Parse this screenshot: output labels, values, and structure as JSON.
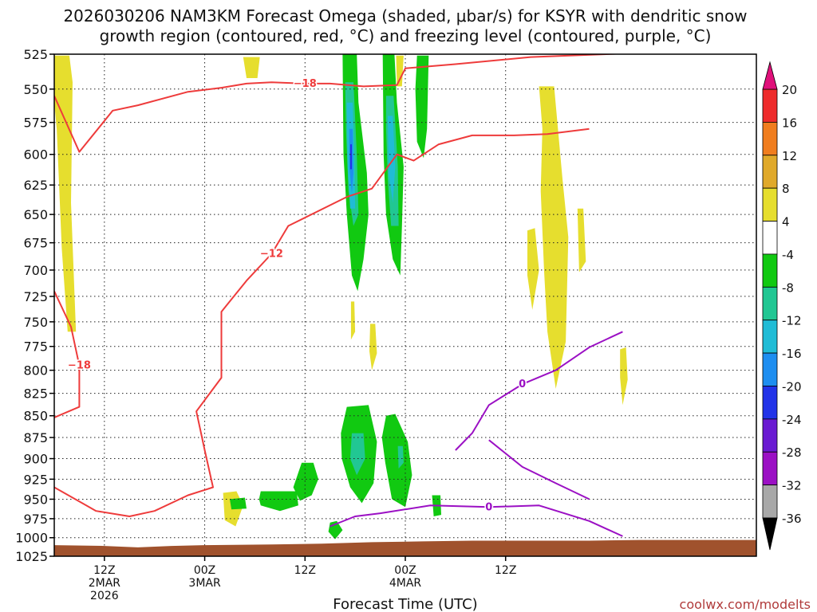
{
  "title_line1": "2026030206 NAM3KM Forecast Omega (shaded, μbar/s) for KSYR with dendritic snow",
  "title_line2": "growth region (contoured, red, °C) and freezing level (contoured, purple, °C)",
  "xlabel": "Forecast Time (UTC)",
  "watermark": "coolwx.com/modelts",
  "chart_data": {
    "type": "heatmap",
    "y_axis": {
      "label": "",
      "scale": "log-pressure",
      "inverted": true,
      "range_hpa": [
        525,
        1025
      ],
      "ticks": [
        525,
        550,
        575,
        600,
        625,
        650,
        675,
        700,
        725,
        750,
        775,
        800,
        825,
        850,
        875,
        900,
        925,
        950,
        975,
        1000,
        1025
      ]
    },
    "x_axis": {
      "range_hours": [
        0,
        84
      ],
      "ticks": [
        {
          "hour": 6,
          "lines": [
            "12Z",
            "2MAR",
            "2026"
          ]
        },
        {
          "hour": 18,
          "lines": [
            "00Z",
            "3MAR"
          ]
        },
        {
          "hour": 30,
          "lines": [
            "12Z"
          ]
        },
        {
          "hour": 42,
          "lines": [
            "00Z",
            "4MAR"
          ]
        },
        {
          "hour": 54,
          "lines": [
            "12Z"
          ]
        }
      ]
    },
    "grid": true,
    "colorbar": {
      "unit": "μbar/s",
      "labels": [
        "20",
        "16",
        "12",
        "8",
        "4",
        "-4",
        "-8",
        "-12",
        "-16",
        "-20",
        "-24",
        "-28",
        "-32",
        "-36"
      ],
      "bins": [
        {
          "from": 16,
          "to": 20,
          "color": "#ee2b2b"
        },
        {
          "from": 12,
          "to": 16,
          "color": "#f07d1e"
        },
        {
          "from": 8,
          "to": 12,
          "color": "#e0a92a"
        },
        {
          "from": 4,
          "to": 8,
          "color": "#e6de2e"
        },
        {
          "from": -4,
          "to": 4,
          "color": "#ffffff"
        },
        {
          "from": -8,
          "to": -4,
          "color": "#11c911"
        },
        {
          "from": -12,
          "to": -8,
          "color": "#21c793"
        },
        {
          "from": -16,
          "to": -12,
          "color": "#20bcd6"
        },
        {
          "from": -20,
          "to": -16,
          "color": "#1e8ef0"
        },
        {
          "from": -24,
          "to": -20,
          "color": "#2233e8"
        },
        {
          "from": -28,
          "to": -24,
          "color": "#6a1ad2"
        },
        {
          "from": -32,
          "to": -28,
          "color": "#9b10c4"
        },
        {
          "from": -36,
          "to": -32,
          "color": "#a8a8a8"
        }
      ],
      "over_color": "#e0107a",
      "under_color": "#000000"
    },
    "contours": [
      {
        "name": "dendritic -18",
        "label": "−18",
        "color": "#ee3b3b",
        "points": [
          [
            0,
            555
          ],
          [
            3,
            598
          ],
          [
            7,
            566
          ],
          [
            10,
            562
          ],
          [
            16,
            552
          ],
          [
            20,
            549
          ],
          [
            23,
            546
          ],
          [
            26,
            545
          ],
          [
            30,
            546
          ],
          [
            33,
            546
          ],
          [
            37,
            548
          ],
          [
            41,
            547
          ],
          [
            42,
            535
          ],
          [
            48,
            532
          ],
          [
            57,
            527
          ],
          [
            75,
            523
          ]
        ]
      },
      {
        "name": "dendritic -12",
        "label": "−12",
        "color": "#ee3b3b",
        "points": [
          [
            0,
            935
          ],
          [
            5,
            965
          ],
          [
            9,
            972
          ],
          [
            12,
            965
          ],
          [
            16,
            945
          ],
          [
            19,
            935
          ],
          [
            18,
            890
          ],
          [
            17,
            845
          ],
          [
            20,
            808
          ],
          [
            20,
            740
          ],
          [
            23,
            710
          ],
          [
            26,
            685
          ],
          [
            28,
            660
          ],
          [
            35,
            635
          ],
          [
            38,
            628
          ],
          [
            41,
            600
          ],
          [
            43,
            605
          ],
          [
            46,
            592
          ],
          [
            50,
            585
          ],
          [
            55,
            585
          ],
          [
            59,
            584
          ],
          [
            64,
            580
          ]
        ]
      },
      {
        "name": "dendritic -18 (lower)",
        "label": "−18",
        "color": "#ee3b3b",
        "points": [
          [
            0,
            720
          ],
          [
            2,
            755
          ],
          [
            3,
            795
          ],
          [
            3,
            840
          ],
          [
            0,
            852
          ]
        ]
      },
      {
        "name": "freezing 0",
        "label": "0",
        "color": "#9b10c4",
        "points": [
          [
            48,
            890
          ],
          [
            50,
            870
          ],
          [
            52,
            838
          ],
          [
            56,
            815
          ],
          [
            60,
            800
          ],
          [
            64,
            776
          ],
          [
            68,
            760
          ]
        ]
      },
      {
        "name": "freezing 0 (low)",
        "label": "0",
        "color": "#9b10c4",
        "points": [
          [
            33,
            985
          ],
          [
            36,
            972
          ],
          [
            39,
            968
          ],
          [
            45,
            958
          ],
          [
            52,
            960
          ],
          [
            58,
            958
          ],
          [
            64,
            978
          ],
          [
            68,
            998
          ]
        ]
      },
      {
        "name": "freezing lower",
        "label": "",
        "color": "#9b10c4",
        "points": [
          [
            52,
            878
          ],
          [
            56,
            910
          ],
          [
            60,
            930
          ],
          [
            64,
            950
          ]
        ]
      }
    ],
    "shaded_regions": [
      {
        "value": 6,
        "pts": [
          [
            0,
            526
          ],
          [
            1.8,
            526
          ],
          [
            2.2,
            545
          ],
          [
            2.0,
            640
          ],
          [
            2.6,
            760
          ],
          [
            1.6,
            760
          ],
          [
            0.9,
            680
          ],
          [
            0.3,
            580
          ],
          [
            0,
            560
          ]
        ]
      },
      {
        "value": 6,
        "pts": [
          [
            22.6,
            527
          ],
          [
            24.6,
            527
          ],
          [
            24.3,
            542
          ],
          [
            23.0,
            542
          ]
        ]
      },
      {
        "value": 6,
        "pts": [
          [
            20.2,
            942
          ],
          [
            21.8,
            940
          ],
          [
            22.6,
            958
          ],
          [
            21.7,
            985
          ],
          [
            20.4,
            977
          ]
        ]
      },
      {
        "value": 6,
        "pts": [
          [
            40.9,
            526
          ],
          [
            41.8,
            526
          ],
          [
            41.6,
            548
          ],
          [
            41.0,
            548
          ]
        ]
      },
      {
        "value": 6,
        "pts": [
          [
            58,
            548
          ],
          [
            59.8,
            548
          ],
          [
            60.8,
            620
          ],
          [
            61.5,
            670
          ],
          [
            61.2,
            770
          ],
          [
            60,
            820
          ],
          [
            59,
            760
          ],
          [
            58.6,
            700
          ],
          [
            58.2,
            630
          ],
          [
            58.4,
            580
          ]
        ]
      },
      {
        "value": 6,
        "pts": [
          [
            56.6,
            664
          ],
          [
            57.5,
            662
          ],
          [
            58,
            700
          ],
          [
            57.2,
            738
          ],
          [
            56.6,
            705
          ]
        ]
      },
      {
        "value": 6,
        "pts": [
          [
            62.6,
            645
          ],
          [
            63.3,
            645
          ],
          [
            63.6,
            692
          ],
          [
            62.8,
            702
          ]
        ]
      },
      {
        "value": 6,
        "pts": [
          [
            67.7,
            778
          ],
          [
            68.4,
            776
          ],
          [
            68.6,
            810
          ],
          [
            68.0,
            838
          ],
          [
            67.7,
            808
          ]
        ]
      },
      {
        "value": 6,
        "pts": [
          [
            35.5,
            730
          ],
          [
            35.9,
            730
          ],
          [
            36.0,
            760
          ],
          [
            35.5,
            768
          ]
        ]
      },
      {
        "value": 6,
        "pts": [
          [
            37.8,
            752
          ],
          [
            38.4,
            752
          ],
          [
            38.6,
            782
          ],
          [
            38.0,
            800
          ],
          [
            37.7,
            780
          ]
        ]
      },
      {
        "value": -6,
        "pts": [
          [
            34.5,
            525
          ],
          [
            36.2,
            525
          ],
          [
            36.4,
            560
          ],
          [
            37.4,
            615
          ],
          [
            37.6,
            650
          ],
          [
            37.0,
            690
          ],
          [
            36.3,
            720
          ],
          [
            35.6,
            705
          ],
          [
            35.0,
            650
          ],
          [
            34.6,
            600
          ]
        ]
      },
      {
        "value": -6,
        "pts": [
          [
            39.3,
            525
          ],
          [
            40.7,
            525
          ],
          [
            41.0,
            560
          ],
          [
            41.8,
            610
          ],
          [
            41.6,
            660
          ],
          [
            41.4,
            705
          ],
          [
            40.5,
            690
          ],
          [
            39.7,
            650
          ],
          [
            39.4,
            600
          ]
        ]
      },
      {
        "value": -6,
        "pts": [
          [
            43.4,
            526
          ],
          [
            44.8,
            526
          ],
          [
            44.6,
            580
          ],
          [
            44.2,
            603
          ],
          [
            43.4,
            590
          ],
          [
            43.2,
            550
          ]
        ]
      },
      {
        "value": -6,
        "pts": [
          [
            35.0,
            840
          ],
          [
            37.6,
            838
          ],
          [
            38.6,
            880
          ],
          [
            38.2,
            930
          ],
          [
            36.8,
            955
          ],
          [
            35.4,
            935
          ],
          [
            34.4,
            900
          ],
          [
            34.3,
            870
          ]
        ]
      },
      {
        "value": -6,
        "pts": [
          [
            39.7,
            850
          ],
          [
            40.8,
            848
          ],
          [
            42.3,
            880
          ],
          [
            42.8,
            920
          ],
          [
            42.0,
            960
          ],
          [
            40.4,
            950
          ],
          [
            39.6,
            905
          ],
          [
            39.2,
            875
          ]
        ]
      },
      {
        "value": -6,
        "pts": [
          [
            29.6,
            905
          ],
          [
            31.0,
            905
          ],
          [
            31.6,
            925
          ],
          [
            30.8,
            945
          ],
          [
            29.4,
            952
          ],
          [
            28.6,
            935
          ]
        ]
      },
      {
        "value": -6,
        "pts": [
          [
            24.7,
            940
          ],
          [
            29.0,
            940
          ],
          [
            29.2,
            958
          ],
          [
            27.0,
            965
          ],
          [
            24.7,
            958
          ],
          [
            24.5,
            950
          ]
        ]
      },
      {
        "value": -6,
        "pts": [
          [
            21.0,
            950
          ],
          [
            22.8,
            948
          ],
          [
            23.0,
            962
          ],
          [
            21.2,
            963
          ]
        ]
      },
      {
        "value": -6,
        "pts": [
          [
            33.0,
            980
          ],
          [
            33.8,
            978
          ],
          [
            34.5,
            990
          ],
          [
            33.6,
            1002
          ],
          [
            32.8,
            992
          ]
        ]
      },
      {
        "value": -6,
        "pts": [
          [
            45.2,
            945
          ],
          [
            46.2,
            945
          ],
          [
            46.3,
            970
          ],
          [
            45.4,
            972
          ]
        ]
      },
      {
        "value": -10,
        "pts": [
          [
            34.8,
            545
          ],
          [
            35.8,
            545
          ],
          [
            36.2,
            600
          ],
          [
            36.4,
            650
          ],
          [
            35.8,
            660
          ],
          [
            35.2,
            630
          ],
          [
            34.9,
            580
          ]
        ]
      },
      {
        "value": -10,
        "pts": [
          [
            39.7,
            555
          ],
          [
            40.6,
            555
          ],
          [
            41.1,
            610
          ],
          [
            41.2,
            660
          ],
          [
            40.3,
            660
          ],
          [
            39.9,
            620
          ],
          [
            39.7,
            580
          ]
        ]
      },
      {
        "value": -10,
        "pts": [
          [
            35.6,
            870
          ],
          [
            37.0,
            870
          ],
          [
            37.2,
            900
          ],
          [
            36.2,
            920
          ],
          [
            35.4,
            900
          ]
        ]
      },
      {
        "value": -10,
        "pts": [
          [
            41.1,
            885
          ],
          [
            41.7,
            885
          ],
          [
            41.8,
            905
          ],
          [
            41.2,
            912
          ]
        ]
      },
      {
        "value": -14,
        "pts": [
          [
            35.0,
            560
          ],
          [
            35.7,
            560
          ],
          [
            35.9,
            600
          ],
          [
            36.0,
            645
          ],
          [
            35.4,
            645
          ],
          [
            35.1,
            610
          ]
        ]
      },
      {
        "value": -14,
        "pts": [
          [
            39.9,
            570
          ],
          [
            40.5,
            570
          ],
          [
            40.8,
            610
          ],
          [
            40.5,
            640
          ],
          [
            40.0,
            615
          ]
        ]
      },
      {
        "value": -18,
        "pts": [
          [
            35.3,
            580
          ],
          [
            35.7,
            580
          ],
          [
            35.8,
            615
          ],
          [
            35.6,
            632
          ],
          [
            35.3,
            610
          ]
        ]
      },
      {
        "value": -22,
        "pts": [
          [
            35.4,
            592
          ],
          [
            35.6,
            592
          ],
          [
            35.6,
            612
          ],
          [
            35.4,
            612
          ]
        ]
      }
    ],
    "terrain": {
      "color": "#a0522d",
      "surface_hpa": [
        [
          0,
          1010
        ],
        [
          6,
          1011
        ],
        [
          10,
          1013
        ],
        [
          14,
          1011
        ],
        [
          18,
          1010
        ],
        [
          26,
          1009
        ],
        [
          32,
          1008
        ],
        [
          38,
          1006
        ],
        [
          44,
          1005
        ],
        [
          50,
          1004
        ],
        [
          56,
          1004
        ],
        [
          64,
          1004
        ],
        [
          70,
          1003
        ],
        [
          84,
          1003
        ]
      ]
    }
  }
}
